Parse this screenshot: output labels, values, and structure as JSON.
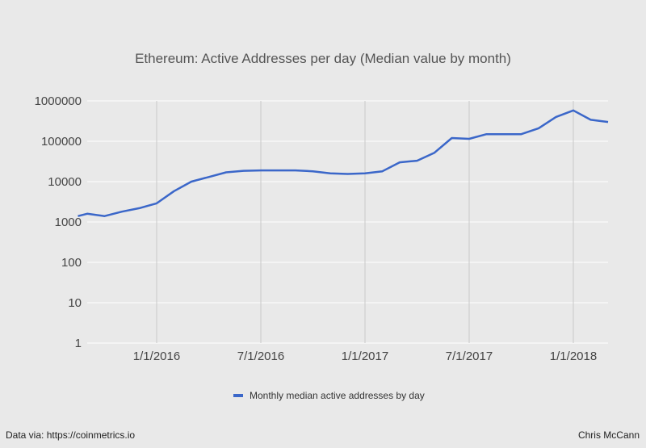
{
  "chart_data": {
    "type": "line",
    "title": "Ethereum: Active Addresses per day (Median value by month)",
    "xlabel": "",
    "ylabel": "",
    "y_scale": "log",
    "ylim": [
      1,
      1000000
    ],
    "xlim": [
      "2015-09-01",
      "2018-03-01"
    ],
    "y_ticks": [
      1,
      10,
      100,
      1000,
      10000,
      100000,
      1000000
    ],
    "y_tick_labels": [
      "1",
      "10",
      "100",
      "1000",
      "10000",
      "100000",
      "1000000"
    ],
    "x_ticks": [
      "2016-01-01",
      "2016-07-01",
      "2017-01-01",
      "2017-07-01",
      "2018-01-01"
    ],
    "x_tick_labels": [
      "1/1/2016",
      "7/1/2016",
      "1/1/2017",
      "7/1/2017",
      "1/1/2018"
    ],
    "grid": "vertical",
    "legend_position": "bottom",
    "series": [
      {
        "name": "Monthly median active addresses by day",
        "color": "#3b67c9",
        "x": [
          "2015-09-01",
          "2015-10-01",
          "2015-11-01",
          "2015-12-01",
          "2016-01-01",
          "2016-02-01",
          "2016-03-01",
          "2016-04-01",
          "2016-05-01",
          "2016-06-01",
          "2016-07-01",
          "2016-08-01",
          "2016-09-01",
          "2016-10-01",
          "2016-11-01",
          "2016-12-01",
          "2017-01-01",
          "2017-02-01",
          "2017-03-01",
          "2017-04-01",
          "2017-05-01",
          "2017-06-01",
          "2017-07-01",
          "2017-08-01",
          "2017-09-01",
          "2017-10-01",
          "2017-11-01",
          "2017-12-01",
          "2018-01-01",
          "2018-02-01",
          "2018-03-01"
        ],
        "y": [
          1600,
          1400,
          1800,
          2200,
          2900,
          5800,
          10000,
          13000,
          17000,
          18500,
          19000,
          19000,
          19000,
          18000,
          16000,
          15500,
          16000,
          18000,
          30000,
          33000,
          52000,
          120000,
          115000,
          150000,
          150000,
          150000,
          210000,
          400000,
          580000,
          340000,
          300000
        ]
      }
    ],
    "series_start": {
      "x": "2015-08-15",
      "y": 1400
    }
  },
  "footer": {
    "source": "Data via: https://coinmetrics.io",
    "credit": "Chris McCann"
  }
}
